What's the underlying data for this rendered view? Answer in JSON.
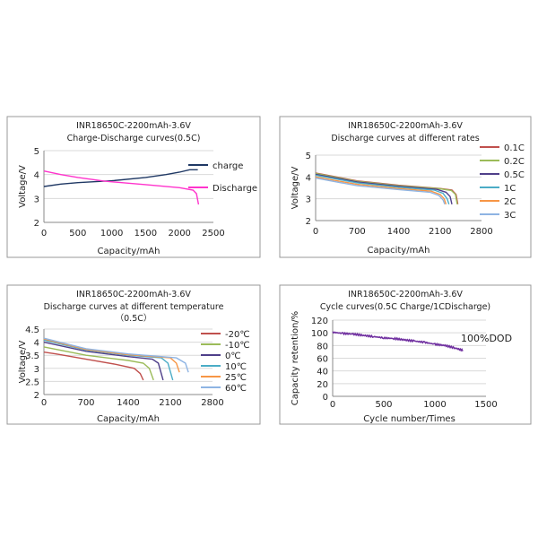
{
  "chart_data": [
    {
      "type": "line",
      "title": "INR18650C-2200mAh-3.6V",
      "subtitle": "Charge-Discharge curves(0.5C)",
      "xlabel": "Capacity/mAh",
      "ylabel": "Voltage/V",
      "xlim": [
        0,
        2500
      ],
      "ylim": [
        2,
        5
      ],
      "xticks": [
        0,
        500,
        1000,
        1500,
        2000,
        2500
      ],
      "yticks": [
        2,
        3,
        4,
        5
      ],
      "grid": true,
      "legend": "right",
      "series": [
        {
          "name": "charge",
          "color": "#1f3864",
          "points": [
            [
              0,
              3.5
            ],
            [
              250,
              3.6
            ],
            [
              500,
              3.66
            ],
            [
              1000,
              3.74
            ],
            [
              1500,
              3.88
            ],
            [
              1800,
              4.0
            ],
            [
              2000,
              4.1
            ],
            [
              2150,
              4.2
            ],
            [
              2270,
              4.2
            ]
          ]
        },
        {
          "name": "Discharge",
          "color": "#ff33cc",
          "points": [
            [
              0,
              4.15
            ],
            [
              250,
              4.0
            ],
            [
              500,
              3.88
            ],
            [
              900,
              3.72
            ],
            [
              1500,
              3.58
            ],
            [
              2000,
              3.45
            ],
            [
              2200,
              3.35
            ],
            [
              2250,
              3.2
            ],
            [
              2280,
              2.75
            ]
          ]
        }
      ]
    },
    {
      "type": "line",
      "title": "INR18650C-2200mAh-3.6V",
      "subtitle": "Discharge curves at different rates",
      "xlabel": "Capacity/mAh",
      "ylabel": "Voltage/V",
      "xlim": [
        0,
        2800
      ],
      "ylim": [
        2,
        5
      ],
      "xticks": [
        0,
        700,
        1400,
        2100,
        2800
      ],
      "yticks": [
        2,
        3,
        4,
        5
      ],
      "grid": true,
      "legend": "right",
      "series": [
        {
          "name": "0.1C",
          "color": "#c0504d",
          "points": [
            [
              0,
              4.18
            ],
            [
              700,
              3.82
            ],
            [
              1400,
              3.62
            ],
            [
              2100,
              3.47
            ],
            [
              2300,
              3.4
            ],
            [
              2370,
              3.2
            ],
            [
              2400,
              2.75
            ]
          ]
        },
        {
          "name": "0.2C",
          "color": "#9bbb59",
          "points": [
            [
              0,
              4.16
            ],
            [
              700,
              3.8
            ],
            [
              1400,
              3.6
            ],
            [
              2100,
              3.46
            ],
            [
              2290,
              3.38
            ],
            [
              2360,
              3.2
            ],
            [
              2390,
              2.75
            ]
          ]
        },
        {
          "name": "0.5C",
          "color": "#4f3f8a",
          "points": [
            [
              0,
              4.12
            ],
            [
              700,
              3.77
            ],
            [
              1400,
              3.57
            ],
            [
              2050,
              3.43
            ],
            [
              2200,
              3.3
            ],
            [
              2270,
              3.1
            ],
            [
              2300,
              2.75
            ]
          ]
        },
        {
          "name": "1C",
          "color": "#4bacc6",
          "points": [
            [
              0,
              4.08
            ],
            [
              700,
              3.73
            ],
            [
              1400,
              3.53
            ],
            [
              2000,
              3.4
            ],
            [
              2150,
              3.25
            ],
            [
              2220,
              3.0
            ],
            [
              2250,
              2.75
            ]
          ]
        },
        {
          "name": "2C",
          "color": "#f79646",
          "points": [
            [
              0,
              4.0
            ],
            [
              700,
              3.66
            ],
            [
              1400,
              3.47
            ],
            [
              1950,
              3.35
            ],
            [
              2100,
              3.2
            ],
            [
              2170,
              3.0
            ],
            [
              2200,
              2.75
            ]
          ]
        },
        {
          "name": "3C",
          "color": "#8eb4e3",
          "points": [
            [
              0,
              3.95
            ],
            [
              700,
              3.6
            ],
            [
              1400,
              3.42
            ],
            [
              1930,
              3.3
            ],
            [
              2080,
              3.15
            ],
            [
              2150,
              2.95
            ],
            [
              2180,
              2.75
            ]
          ]
        }
      ]
    },
    {
      "type": "line",
      "title": "INR18650C-2200mAh-3.6V",
      "subtitle": "Discharge curves at different temperature",
      "subtitle2": "（0.5C）",
      "xlabel": "Capacity/mAh",
      "ylabel": "Voltage/V",
      "xlim": [
        0,
        2800
      ],
      "ylim": [
        2,
        4.5
      ],
      "xticks": [
        0,
        700,
        1400,
        2100,
        2800
      ],
      "yticks": [
        2,
        2.5,
        3,
        3.5,
        4,
        4.5
      ],
      "grid": true,
      "legend": "right",
      "series": [
        {
          "name": "-20℃",
          "color": "#c0504d",
          "points": [
            [
              0,
              3.62
            ],
            [
              200,
              3.55
            ],
            [
              700,
              3.35
            ],
            [
              1200,
              3.15
            ],
            [
              1500,
              3.0
            ],
            [
              1600,
              2.8
            ],
            [
              1650,
              2.55
            ]
          ]
        },
        {
          "name": "-10℃",
          "color": "#9bbb59",
          "points": [
            [
              0,
              3.82
            ],
            [
              700,
              3.5
            ],
            [
              1400,
              3.3
            ],
            [
              1650,
              3.2
            ],
            [
              1750,
              3.0
            ],
            [
              1820,
              2.55
            ]
          ]
        },
        {
          "name": "0℃",
          "color": "#4f3f8a",
          "points": [
            [
              0,
              4.0
            ],
            [
              700,
              3.65
            ],
            [
              1400,
              3.45
            ],
            [
              1800,
              3.35
            ],
            [
              1900,
              3.2
            ],
            [
              1980,
              2.55
            ]
          ]
        },
        {
          "name": "10℃",
          "color": "#4bacc6",
          "points": [
            [
              0,
              4.08
            ],
            [
              700,
              3.7
            ],
            [
              1400,
              3.5
            ],
            [
              1950,
              3.4
            ],
            [
              2060,
              3.2
            ],
            [
              2140,
              2.55
            ]
          ]
        },
        {
          "name": "25℃",
          "color": "#f79646",
          "points": [
            [
              0,
              4.12
            ],
            [
              700,
              3.72
            ],
            [
              1400,
              3.52
            ],
            [
              2100,
              3.4
            ],
            [
              2200,
              3.2
            ],
            [
              2250,
              2.85
            ]
          ]
        },
        {
          "name": "60℃",
          "color": "#8eb4e3",
          "points": [
            [
              0,
              4.15
            ],
            [
              700,
              3.75
            ],
            [
              1400,
              3.55
            ],
            [
              2200,
              3.4
            ],
            [
              2350,
              3.2
            ],
            [
              2400,
              2.85
            ]
          ]
        }
      ]
    },
    {
      "type": "line",
      "title": "INR18650C-2200mAh-3.6V",
      "subtitle": "Cycle curves(0.5C Charge/1CDischarge)",
      "xlabel": "Cycle number/Times",
      "ylabel": "Capacity retention/%",
      "xlim": [
        0,
        1500
      ],
      "ylim": [
        0,
        120
      ],
      "xticks": [
        0,
        500,
        1000,
        1500
      ],
      "yticks": [
        0,
        20,
        40,
        60,
        80,
        100,
        120
      ],
      "grid": true,
      "annotation": "100%DOD",
      "series": [
        {
          "color": "#7030a0",
          "points": [
            [
              0,
              101
            ],
            [
              100,
              99
            ],
            [
              200,
              98
            ],
            [
              300,
              96
            ],
            [
              400,
              94
            ],
            [
              500,
              92
            ],
            [
              600,
              91
            ],
            [
              700,
              89
            ],
            [
              800,
              87
            ],
            [
              900,
              85
            ],
            [
              1000,
              82
            ],
            [
              1100,
              80
            ],
            [
              1200,
              76
            ],
            [
              1280,
              72
            ]
          ]
        }
      ]
    }
  ]
}
